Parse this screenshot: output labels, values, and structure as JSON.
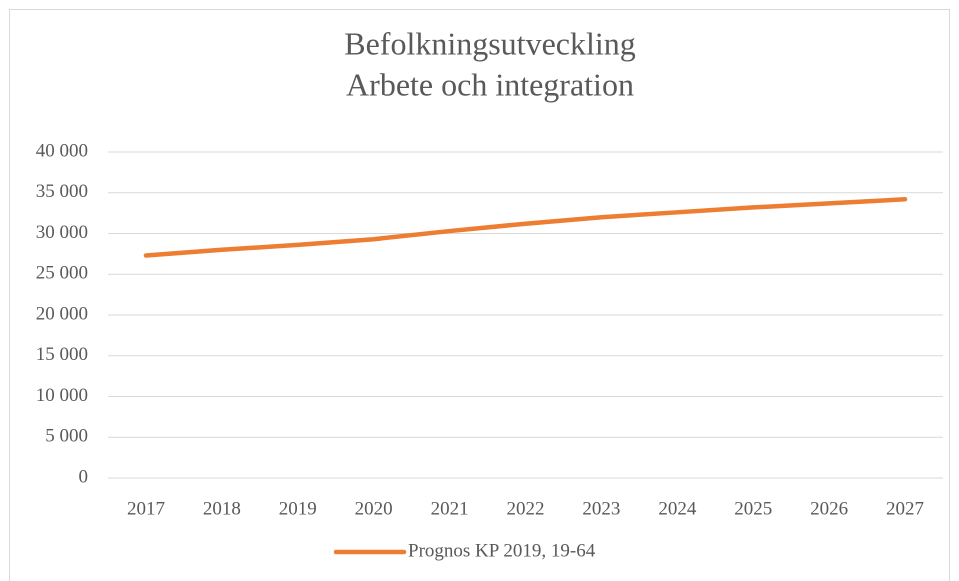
{
  "chart_data": {
    "type": "line",
    "title": "Befolkningsutveckling",
    "subtitle": "Arbete och integration",
    "categories": [
      "2017",
      "2018",
      "2019",
      "2020",
      "2021",
      "2022",
      "2023",
      "2024",
      "2025",
      "2026",
      "2027"
    ],
    "series": [
      {
        "name": "Prognos KP 2019, 19-64",
        "color": "#ed7d31",
        "values": [
          27300,
          28000,
          28600,
          29300,
          30300,
          31200,
          32000,
          32600,
          33200,
          33700,
          34200
        ]
      }
    ],
    "ylim": [
      0,
      40000
    ],
    "yticks": [
      0,
      {
        "value": 5000,
        "label": "5 000"
      },
      {
        "value": 10000,
        "label": "10 000"
      },
      {
        "value": 15000,
        "label": "15 000"
      },
      {
        "value": 20000,
        "label": "20 000"
      },
      {
        "value": 25000,
        "label": "25 000"
      },
      {
        "value": 30000,
        "label": "30 000"
      },
      {
        "value": 35000,
        "label": "35 000"
      },
      {
        "value": 40000,
        "label": "40 000"
      }
    ],
    "grid": true,
    "legend": "bottom"
  }
}
